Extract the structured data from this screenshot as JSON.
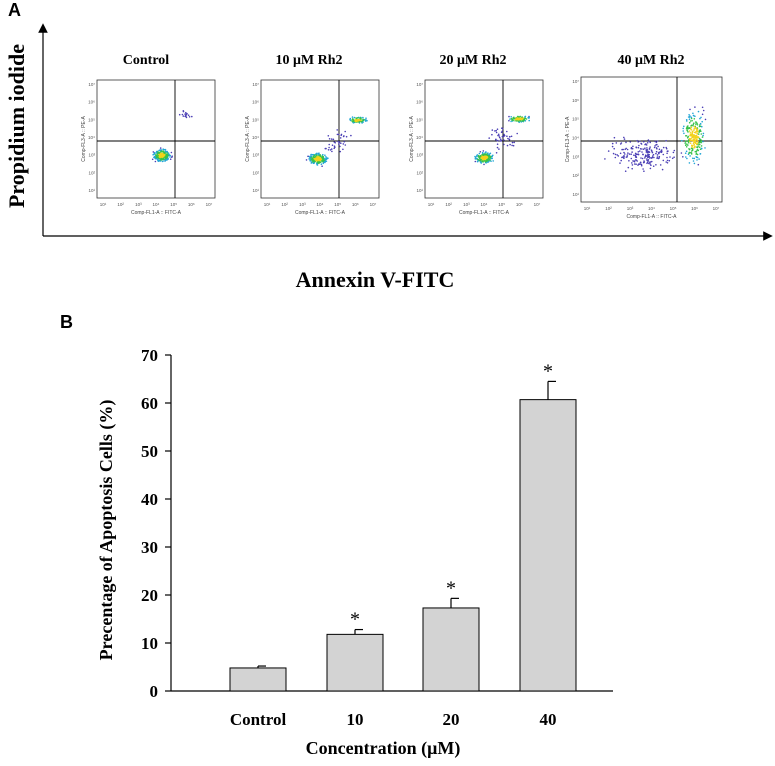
{
  "panel_a": {
    "letter": "A",
    "ylabel": "Propidium iodide",
    "xlabel": "Annexin V-FITC",
    "plots": [
      {
        "title": "Control",
        "x_axis_label": "Comp-FL1-A :: FITC-A",
        "y_axis_label": "Comp-FL3-A :: PE-A"
      },
      {
        "title": "10 μM Rh2",
        "x_axis_label": "Comp-FL1-A :: FITC-A",
        "y_axis_label": "Comp-FL3-A :: PE-A"
      },
      {
        "title": "20 μM Rh2",
        "x_axis_label": "Comp-FL1-A :: FITC-A",
        "y_axis_label": "Comp-FL3-A :: PE-A"
      },
      {
        "title": "40 μM Rh2",
        "x_axis_label": "Comp-FL1-A :: FITC-A",
        "y_axis_label": "Comp-FL3-A :: PE-A"
      }
    ],
    "tick_labels": [
      "10¹",
      "10²",
      "10³",
      "10⁴",
      "10⁵",
      "10⁶",
      "10⁷"
    ]
  },
  "panel_b": {
    "letter": "B"
  },
  "chart_data": {
    "type": "bar",
    "title": "",
    "xlabel": "Concentration (μM)",
    "ylabel": "Precentage of Apoptosis Cells (%)",
    "categories": [
      "Control",
      "10",
      "20",
      "40"
    ],
    "values": [
      4.8,
      11.8,
      17.3,
      60.7
    ],
    "errors": [
      0.4,
      1.0,
      2.0,
      3.8
    ],
    "significance": [
      "",
      "*",
      "*",
      "*"
    ],
    "ylim": [
      0,
      70
    ],
    "yticks": [
      0,
      10,
      20,
      30,
      40,
      50,
      60,
      70
    ],
    "bar_color": "#d3d3d3"
  }
}
